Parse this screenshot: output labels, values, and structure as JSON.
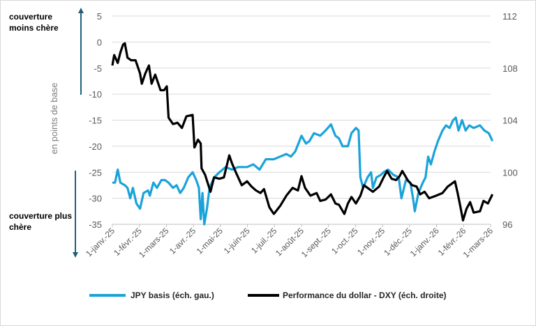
{
  "chart_data": {
    "type": "line",
    "title": "",
    "ylabel": "en points de base",
    "ylim_left": [
      -35,
      5
    ],
    "yticks_left": [
      "5",
      "0",
      "-5",
      "-10",
      "-15",
      "-20",
      "-25",
      "-30",
      "-35"
    ],
    "ylim_right": [
      96,
      112
    ],
    "yticks_right": [
      "112",
      "108",
      "104",
      "100",
      "96"
    ],
    "xlim": [
      "2025-01-01",
      "2026-03-01"
    ],
    "xticks": [
      "1-janv.-25",
      "1-févr.-25",
      "1-mars-25",
      "1-avr.-25",
      "1-mai-25",
      "1-juin-25",
      "1-juil.-25",
      "1-août-25",
      "1-sept.-25",
      "1-oct.-25",
      "1-nov.-25",
      "1-déc.-25",
      "1-janv.-26",
      "1-févr.-26",
      "1-mars-26"
    ],
    "grid": true,
    "legend_position": "bottom",
    "annotations": {
      "top": "couverture moins chère",
      "bottom": "couverture plus chère"
    },
    "series": [
      {
        "name": "JPY basis (éch. gau.)",
        "axis": "left",
        "color": "#1aa3d9",
        "points": [
          [
            "2025-01-01",
            -27
          ],
          [
            "2025-01-04",
            -27
          ],
          [
            "2025-01-07",
            -24.5
          ],
          [
            "2025-01-10",
            -27
          ],
          [
            "2025-01-15",
            -27.5
          ],
          [
            "2025-01-18",
            -28
          ],
          [
            "2025-01-21",
            -30
          ],
          [
            "2025-01-24",
            -28
          ],
          [
            "2025-01-28",
            -31
          ],
          [
            "2025-02-01",
            -32
          ],
          [
            "2025-02-05",
            -29
          ],
          [
            "2025-02-10",
            -28.5
          ],
          [
            "2025-02-12",
            -29.5
          ],
          [
            "2025-02-16",
            -27
          ],
          [
            "2025-02-20",
            -28
          ],
          [
            "2025-02-25",
            -26.5
          ],
          [
            "2025-03-01",
            -26.5
          ],
          [
            "2025-03-05",
            -27
          ],
          [
            "2025-03-10",
            -28
          ],
          [
            "2025-03-14",
            -27.5
          ],
          [
            "2025-03-18",
            -29
          ],
          [
            "2025-03-22",
            -28
          ],
          [
            "2025-03-27",
            -26
          ],
          [
            "2025-04-01",
            -25
          ],
          [
            "2025-04-05",
            -26.5
          ],
          [
            "2025-04-08",
            -28
          ],
          [
            "2025-04-10",
            -34
          ],
          [
            "2025-04-12",
            -29
          ],
          [
            "2025-04-14",
            -35
          ],
          [
            "2025-04-17",
            -32
          ],
          [
            "2025-04-20",
            -28
          ],
          [
            "2025-04-25",
            -26
          ],
          [
            "2025-05-01",
            -25
          ],
          [
            "2025-05-08",
            -24
          ],
          [
            "2025-05-15",
            -24.5
          ],
          [
            "2025-05-22",
            -24
          ],
          [
            "2025-06-01",
            -24
          ],
          [
            "2025-06-08",
            -23.5
          ],
          [
            "2025-06-15",
            -24.5
          ],
          [
            "2025-06-22",
            -22.5
          ],
          [
            "2025-07-01",
            -22.5
          ],
          [
            "2025-07-08",
            -22
          ],
          [
            "2025-07-15",
            -21.5
          ],
          [
            "2025-07-20",
            -22
          ],
          [
            "2025-07-25",
            -21
          ],
          [
            "2025-08-01",
            -18
          ],
          [
            "2025-08-06",
            -19.5
          ],
          [
            "2025-08-10",
            -19
          ],
          [
            "2025-08-15",
            -17.5
          ],
          [
            "2025-08-22",
            -18
          ],
          [
            "2025-08-28",
            -17
          ],
          [
            "2025-09-03",
            -15.8
          ],
          [
            "2025-09-08",
            -18
          ],
          [
            "2025-09-12",
            -18.5
          ],
          [
            "2025-09-16",
            -20
          ],
          [
            "2025-09-22",
            -20
          ],
          [
            "2025-09-26",
            -17.5
          ],
          [
            "2025-10-01",
            -16.5
          ],
          [
            "2025-10-04",
            -17
          ],
          [
            "2025-10-06",
            -26
          ],
          [
            "2025-10-09",
            -28
          ],
          [
            "2025-10-14",
            -26
          ],
          [
            "2025-10-18",
            -25
          ],
          [
            "2025-10-20",
            -28
          ],
          [
            "2025-10-24",
            -26
          ],
          [
            "2025-10-29",
            -25.5
          ],
          [
            "2025-11-01",
            -25
          ],
          [
            "2025-11-06",
            -24.5
          ],
          [
            "2025-11-12",
            -25.5
          ],
          [
            "2025-11-18",
            -26
          ],
          [
            "2025-11-21",
            -30
          ],
          [
            "2025-11-26",
            -26.5
          ],
          [
            "2025-12-01",
            -27
          ],
          [
            "2025-12-04",
            -30
          ],
          [
            "2025-12-06",
            -32.5
          ],
          [
            "2025-12-10",
            -29
          ],
          [
            "2025-12-15",
            -27
          ],
          [
            "2025-12-18",
            -26
          ],
          [
            "2025-12-21",
            -22
          ],
          [
            "2025-12-24",
            -23.5
          ],
          [
            "2025-12-28",
            -21
          ],
          [
            "2026-01-01",
            -19
          ],
          [
            "2026-01-06",
            -17
          ],
          [
            "2026-01-10",
            -16
          ],
          [
            "2026-01-14",
            -16.5
          ],
          [
            "2026-01-18",
            -15
          ],
          [
            "2026-01-21",
            -14.5
          ],
          [
            "2026-01-24",
            -17
          ],
          [
            "2026-01-28",
            -15
          ],
          [
            "2026-02-01",
            -17
          ],
          [
            "2026-02-05",
            -16
          ],
          [
            "2026-02-10",
            -16.5
          ],
          [
            "2026-02-17",
            -16
          ],
          [
            "2026-02-22",
            -17
          ],
          [
            "2026-02-27",
            -17.5
          ],
          [
            "2026-03-03",
            -19
          ]
        ]
      },
      {
        "name": "Performance du dollar - DXY (éch. droite)",
        "axis": "right",
        "color": "#000000",
        "points": [
          [
            "2025-01-01",
            108.2
          ],
          [
            "2025-01-03",
            109
          ],
          [
            "2025-01-07",
            108.4
          ],
          [
            "2025-01-10",
            109.2
          ],
          [
            "2025-01-13",
            109.8
          ],
          [
            "2025-01-15",
            109.9
          ],
          [
            "2025-01-18",
            108.8
          ],
          [
            "2025-01-22",
            108.6
          ],
          [
            "2025-01-27",
            108.6
          ],
          [
            "2025-02-01",
            107.6
          ],
          [
            "2025-02-03",
            106.8
          ],
          [
            "2025-02-07",
            107.6
          ],
          [
            "2025-02-11",
            108.2
          ],
          [
            "2025-02-14",
            106.8
          ],
          [
            "2025-02-18",
            107.5
          ],
          [
            "2025-02-24",
            106.3
          ],
          [
            "2025-02-28",
            106.3
          ],
          [
            "2025-03-03",
            106.6
          ],
          [
            "2025-03-05",
            104.2
          ],
          [
            "2025-03-10",
            103.7
          ],
          [
            "2025-03-15",
            103.8
          ],
          [
            "2025-03-20",
            103.4
          ],
          [
            "2025-03-25",
            104.3
          ],
          [
            "2025-04-01",
            104.4
          ],
          [
            "2025-04-03",
            101.9
          ],
          [
            "2025-04-07",
            102.5
          ],
          [
            "2025-04-10",
            102.2
          ],
          [
            "2025-04-11",
            100.3
          ],
          [
            "2025-04-15",
            99.8
          ],
          [
            "2025-04-21",
            98.5
          ],
          [
            "2025-04-25",
            99.6
          ],
          [
            "2025-05-01",
            99.5
          ],
          [
            "2025-05-06",
            99.6
          ],
          [
            "2025-05-12",
            101.3
          ],
          [
            "2025-05-15",
            100.7
          ],
          [
            "2025-05-20",
            99.9
          ],
          [
            "2025-05-26",
            99.0
          ],
          [
            "2025-06-01",
            99.3
          ],
          [
            "2025-06-06",
            98.9
          ],
          [
            "2025-06-11",
            98.6
          ],
          [
            "2025-06-16",
            98.4
          ],
          [
            "2025-06-20",
            98.7
          ],
          [
            "2025-06-26",
            97.3
          ],
          [
            "2025-07-01",
            96.8
          ],
          [
            "2025-07-08",
            97.4
          ],
          [
            "2025-07-15",
            98.2
          ],
          [
            "2025-07-22",
            98.8
          ],
          [
            "2025-07-28",
            98.6
          ],
          [
            "2025-08-01",
            99.7
          ],
          [
            "2025-08-05",
            98.8
          ],
          [
            "2025-08-11",
            98.2
          ],
          [
            "2025-08-18",
            98.4
          ],
          [
            "2025-08-22",
            97.8
          ],
          [
            "2025-08-28",
            97.9
          ],
          [
            "2025-09-03",
            98.3
          ],
          [
            "2025-09-08",
            97.6
          ],
          [
            "2025-09-12",
            97.5
          ],
          [
            "2025-09-18",
            96.8
          ],
          [
            "2025-09-22",
            97.6
          ],
          [
            "2025-09-26",
            98.1
          ],
          [
            "2025-10-01",
            97.6
          ],
          [
            "2025-10-06",
            98.2
          ],
          [
            "2025-10-10",
            99.0
          ],
          [
            "2025-10-14",
            98.8
          ],
          [
            "2025-10-20",
            98.5
          ],
          [
            "2025-10-27",
            98.9
          ],
          [
            "2025-11-01",
            99.6
          ],
          [
            "2025-11-05",
            100.1
          ],
          [
            "2025-11-10",
            99.5
          ],
          [
            "2025-11-15",
            99.4
          ],
          [
            "2025-11-19",
            99.7
          ],
          [
            "2025-11-22",
            100.1
          ],
          [
            "2025-11-28",
            99.4
          ],
          [
            "2025-12-03",
            99.0
          ],
          [
            "2025-12-08",
            98.9
          ],
          [
            "2025-12-12",
            98.3
          ],
          [
            "2025-12-17",
            98.5
          ],
          [
            "2025-12-22",
            98.0
          ],
          [
            "2025-12-30",
            98.2
          ],
          [
            "2026-01-06",
            98.4
          ],
          [
            "2026-01-12",
            98.9
          ],
          [
            "2026-01-16",
            99.1
          ],
          [
            "2026-01-20",
            99.3
          ],
          [
            "2026-01-23",
            98.4
          ],
          [
            "2026-01-26",
            97.4
          ],
          [
            "2026-01-29",
            96.3
          ],
          [
            "2026-02-02",
            97.2
          ],
          [
            "2026-02-06",
            97.7
          ],
          [
            "2026-02-10",
            96.9
          ],
          [
            "2026-02-17",
            97.0
          ],
          [
            "2026-02-21",
            97.8
          ],
          [
            "2026-02-26",
            97.6
          ],
          [
            "2026-03-03",
            98.3
          ]
        ]
      }
    ]
  }
}
